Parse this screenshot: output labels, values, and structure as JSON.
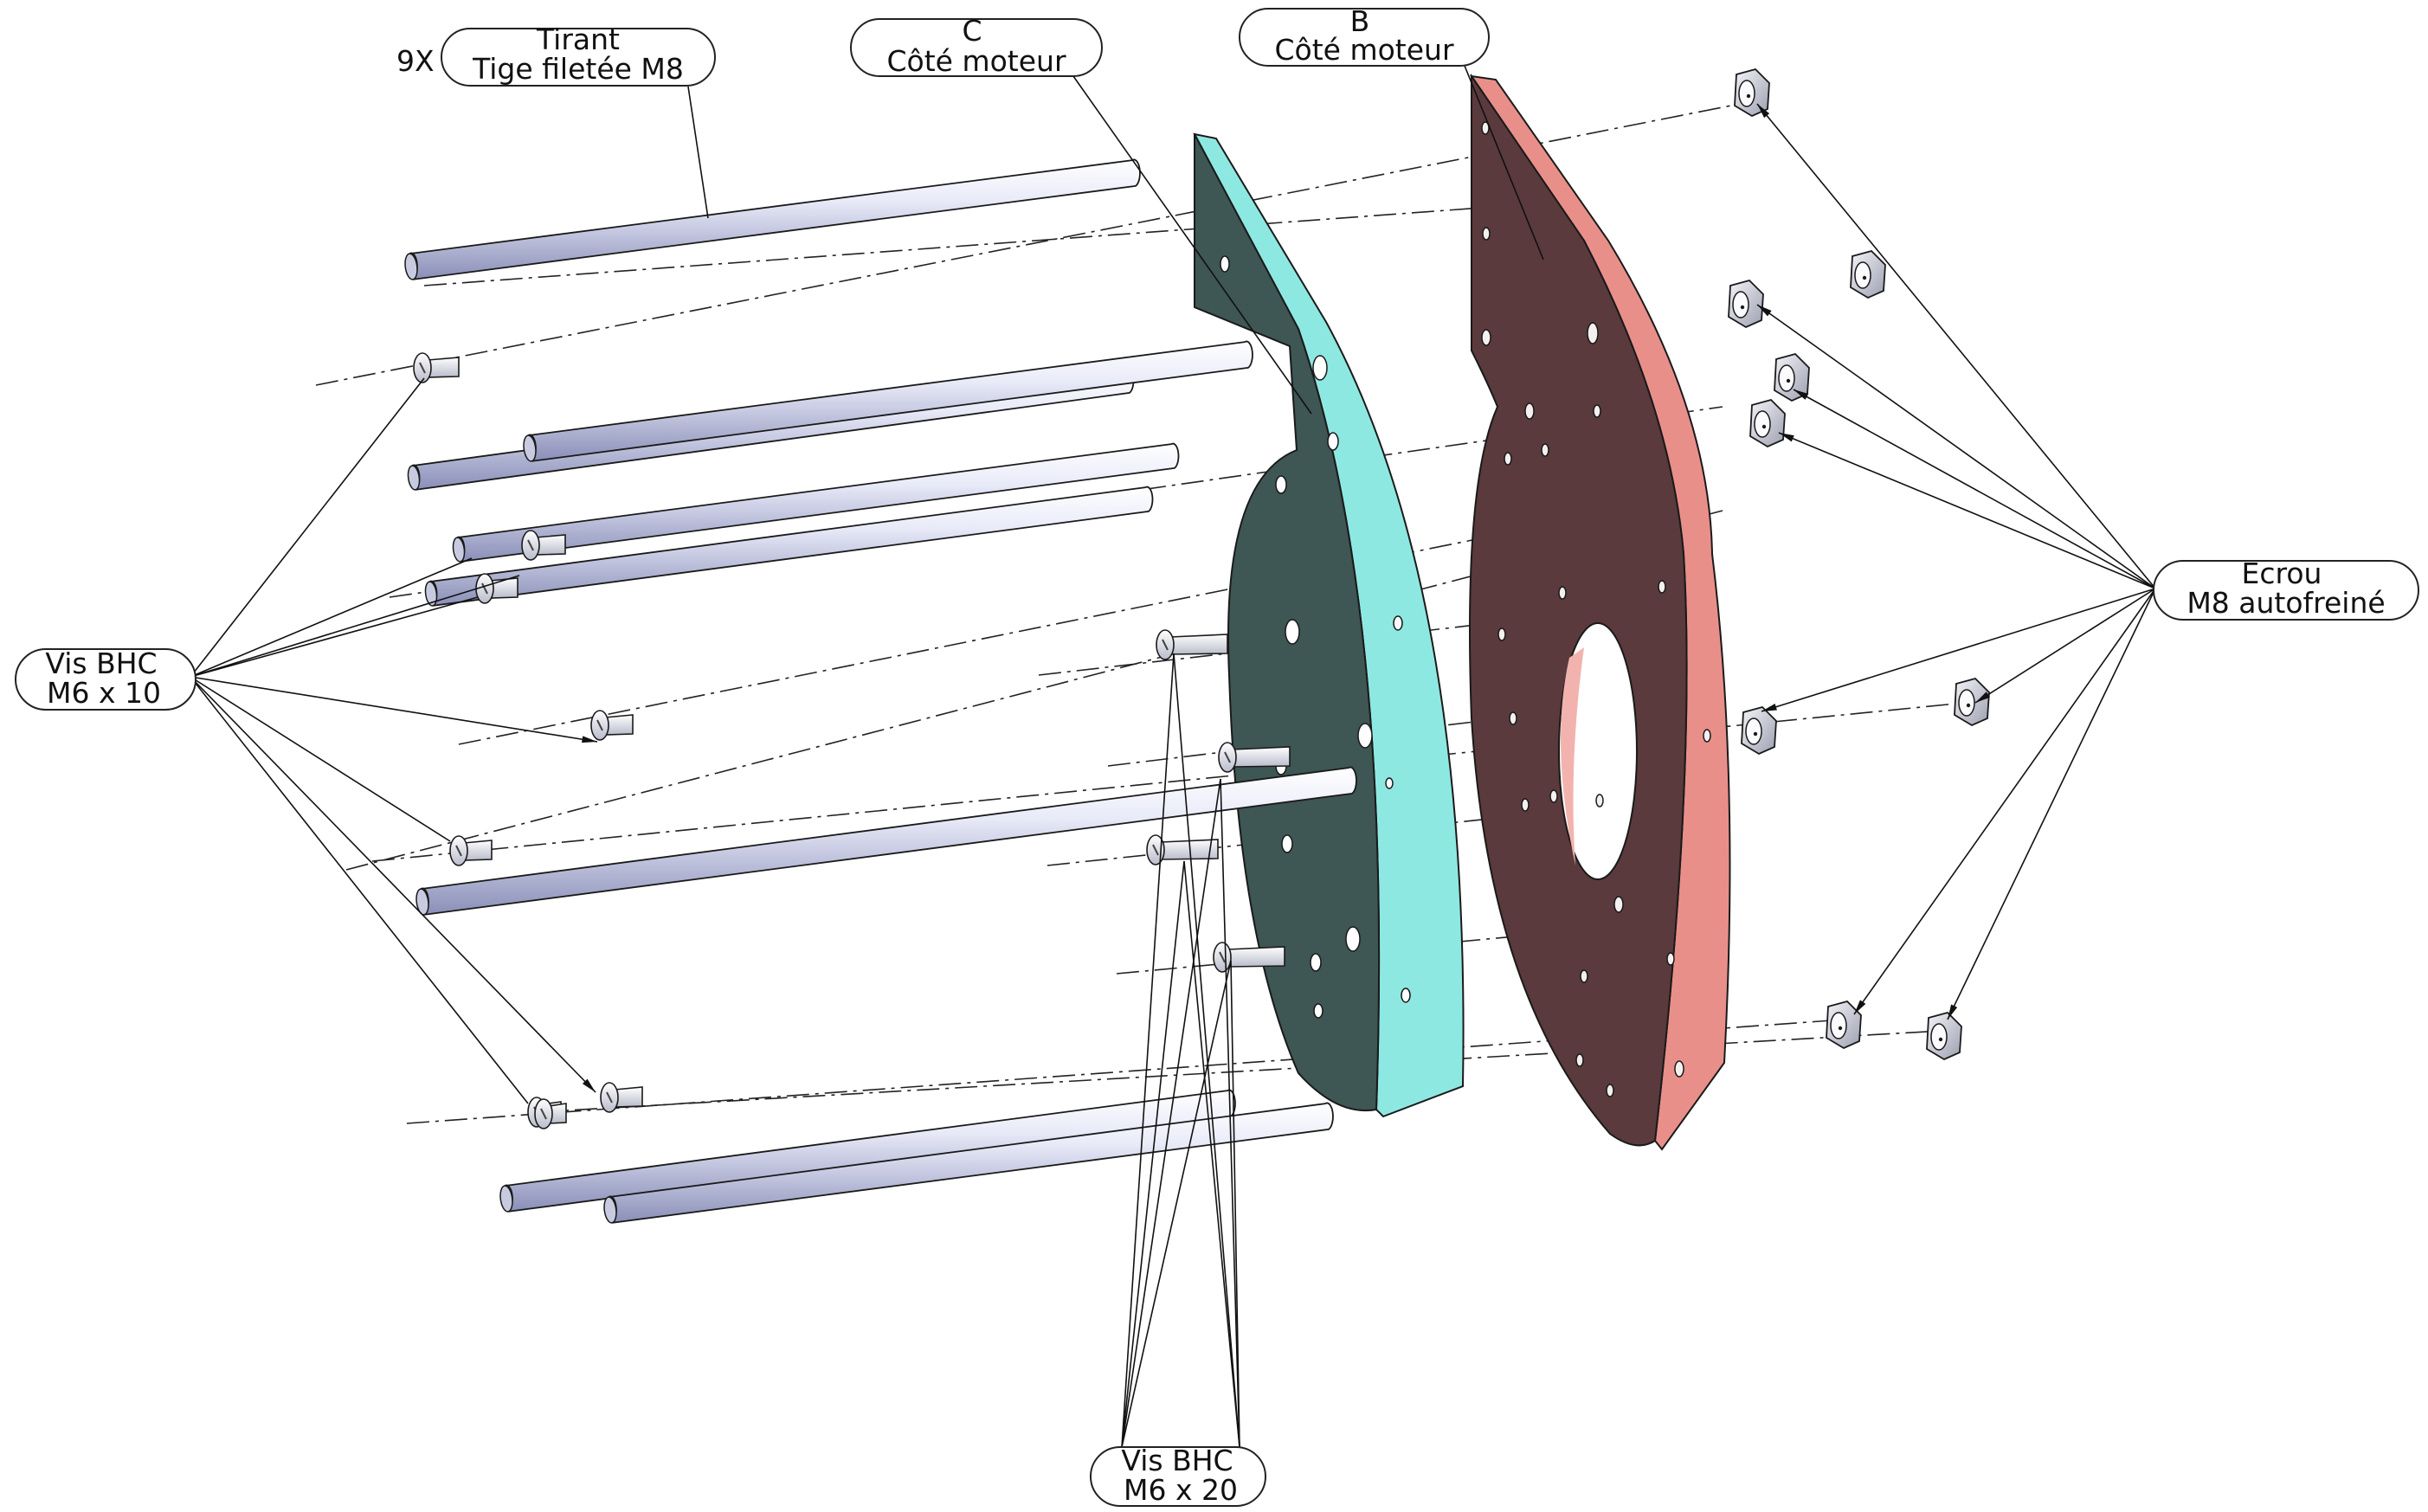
{
  "callouts": {
    "tirant": {
      "qty": "9X",
      "line1": "Tirant",
      "line2": "Tige filetée M8"
    },
    "plate_c": {
      "line1": "C",
      "line2": "Côté moteur"
    },
    "plate_b": {
      "line1": "B",
      "line2": "Côté moteur"
    },
    "ecrou": {
      "line1": "Ecrou",
      "line2": "M8 autofreiné"
    },
    "vis_m6x10": {
      "line1": "Vis BHC",
      "line2": "M6 x 10"
    },
    "vis_m6x20": {
      "line1": "Vis BHC",
      "line2": "M6 x 20"
    }
  },
  "colors": {
    "plate_c_face": "#3e5654",
    "plate_c_edge": "#8ee8e2",
    "plate_b_face": "#5a3a3c",
    "plate_b_edge": "#e98f8a",
    "rod_light": "#eef0fb",
    "rod_dark": "#8a8fb8",
    "hardware": "#d2d3de"
  }
}
